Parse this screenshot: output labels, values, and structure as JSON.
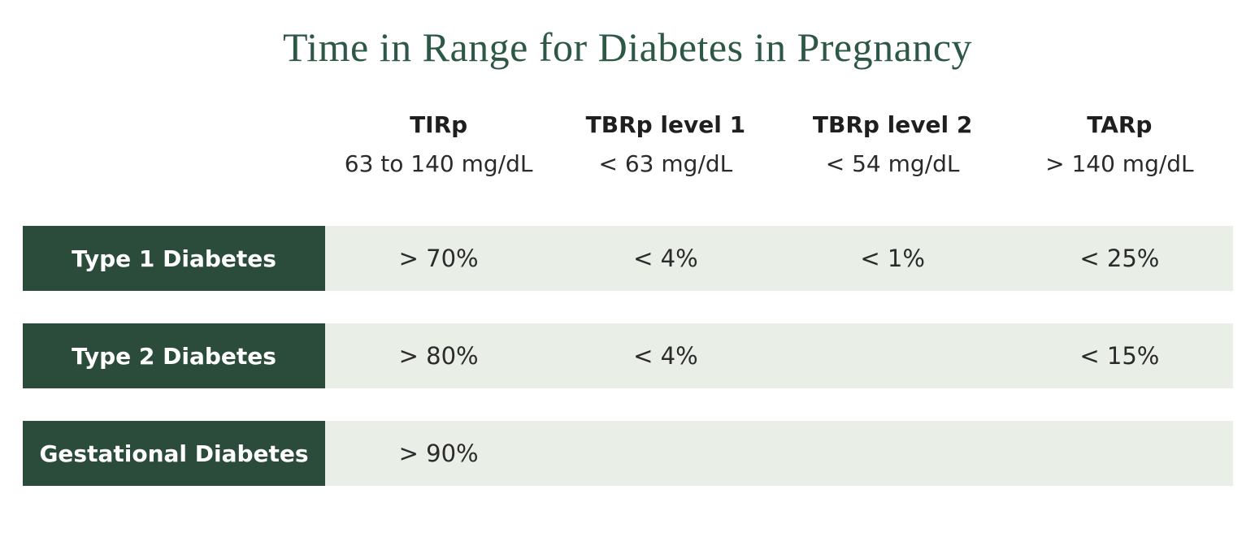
{
  "colors": {
    "title_green": "#2d5846",
    "row_label_green": "#2b4c3a",
    "row_background": "#e9eee7",
    "header_text": "#1f1f1f",
    "value_text": "#2b2b2b",
    "row_label_text": "#ffffff"
  },
  "chart_data": {
    "type": "table",
    "title": "Time in Range for Diabetes in Pregnancy",
    "columns": [
      {
        "label": "TIRp",
        "sublabel": "63 to 140 mg/dL"
      },
      {
        "label": "TBRp level 1",
        "sublabel": "< 63 mg/dL"
      },
      {
        "label": "TBRp level 2",
        "sublabel": "< 54 mg/dL"
      },
      {
        "label": "TARp",
        "sublabel": "> 140 mg/dL"
      }
    ],
    "rows": [
      {
        "label": "Type 1 Diabetes",
        "values": [
          "> 70%",
          "< 4%",
          "< 1%",
          "< 25%"
        ]
      },
      {
        "label": "Type 2 Diabetes",
        "values": [
          "> 80%",
          "< 4%",
          "",
          "< 15%"
        ]
      },
      {
        "label": "Gestational Diabetes",
        "values": [
          "> 90%",
          "",
          "",
          ""
        ]
      }
    ]
  }
}
